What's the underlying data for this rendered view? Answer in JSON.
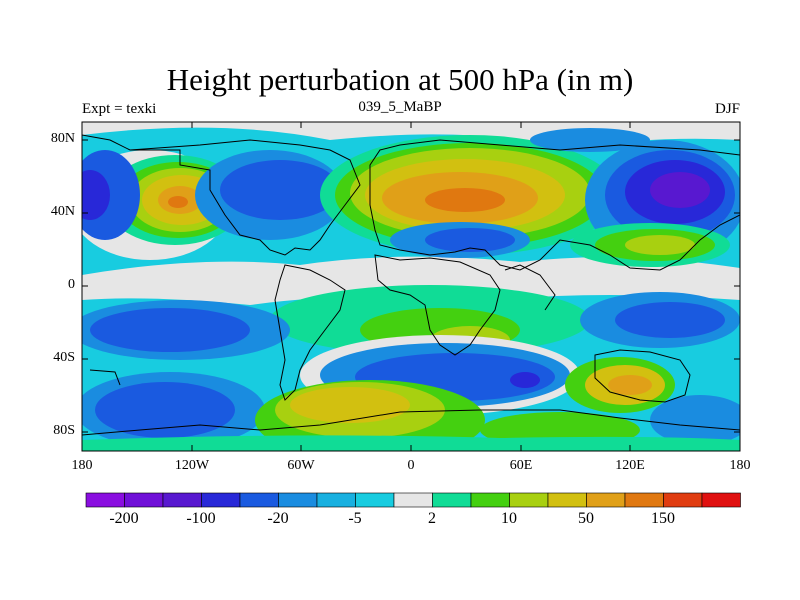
{
  "title": "Height perturbation at 500 hPa (in m)",
  "left_label": "Expt = texki",
  "center_label": "039_5_MaBP",
  "right_label": "DJF",
  "y_ticks": [
    "80N",
    "40N",
    "0",
    "40S",
    "80S"
  ],
  "x_ticks": [
    "180",
    "120W",
    "60W",
    "0",
    "60E",
    "120E",
    "180"
  ],
  "colorbar": {
    "colors": [
      "#8a0ee0",
      "#7010d8",
      "#5818d0",
      "#2828d8",
      "#1a5ae0",
      "#1a8ce0",
      "#18b0e0",
      "#18cce0",
      "#e6e6e6",
      "#10dc96",
      "#44d010",
      "#a8d010",
      "#d2c010",
      "#e0a018",
      "#e07810",
      "#e03c10",
      "#e01010"
    ],
    "labels": [
      "-200",
      "-100",
      "-20",
      "-5",
      "2",
      "10",
      "50",
      "150"
    ]
  }
}
